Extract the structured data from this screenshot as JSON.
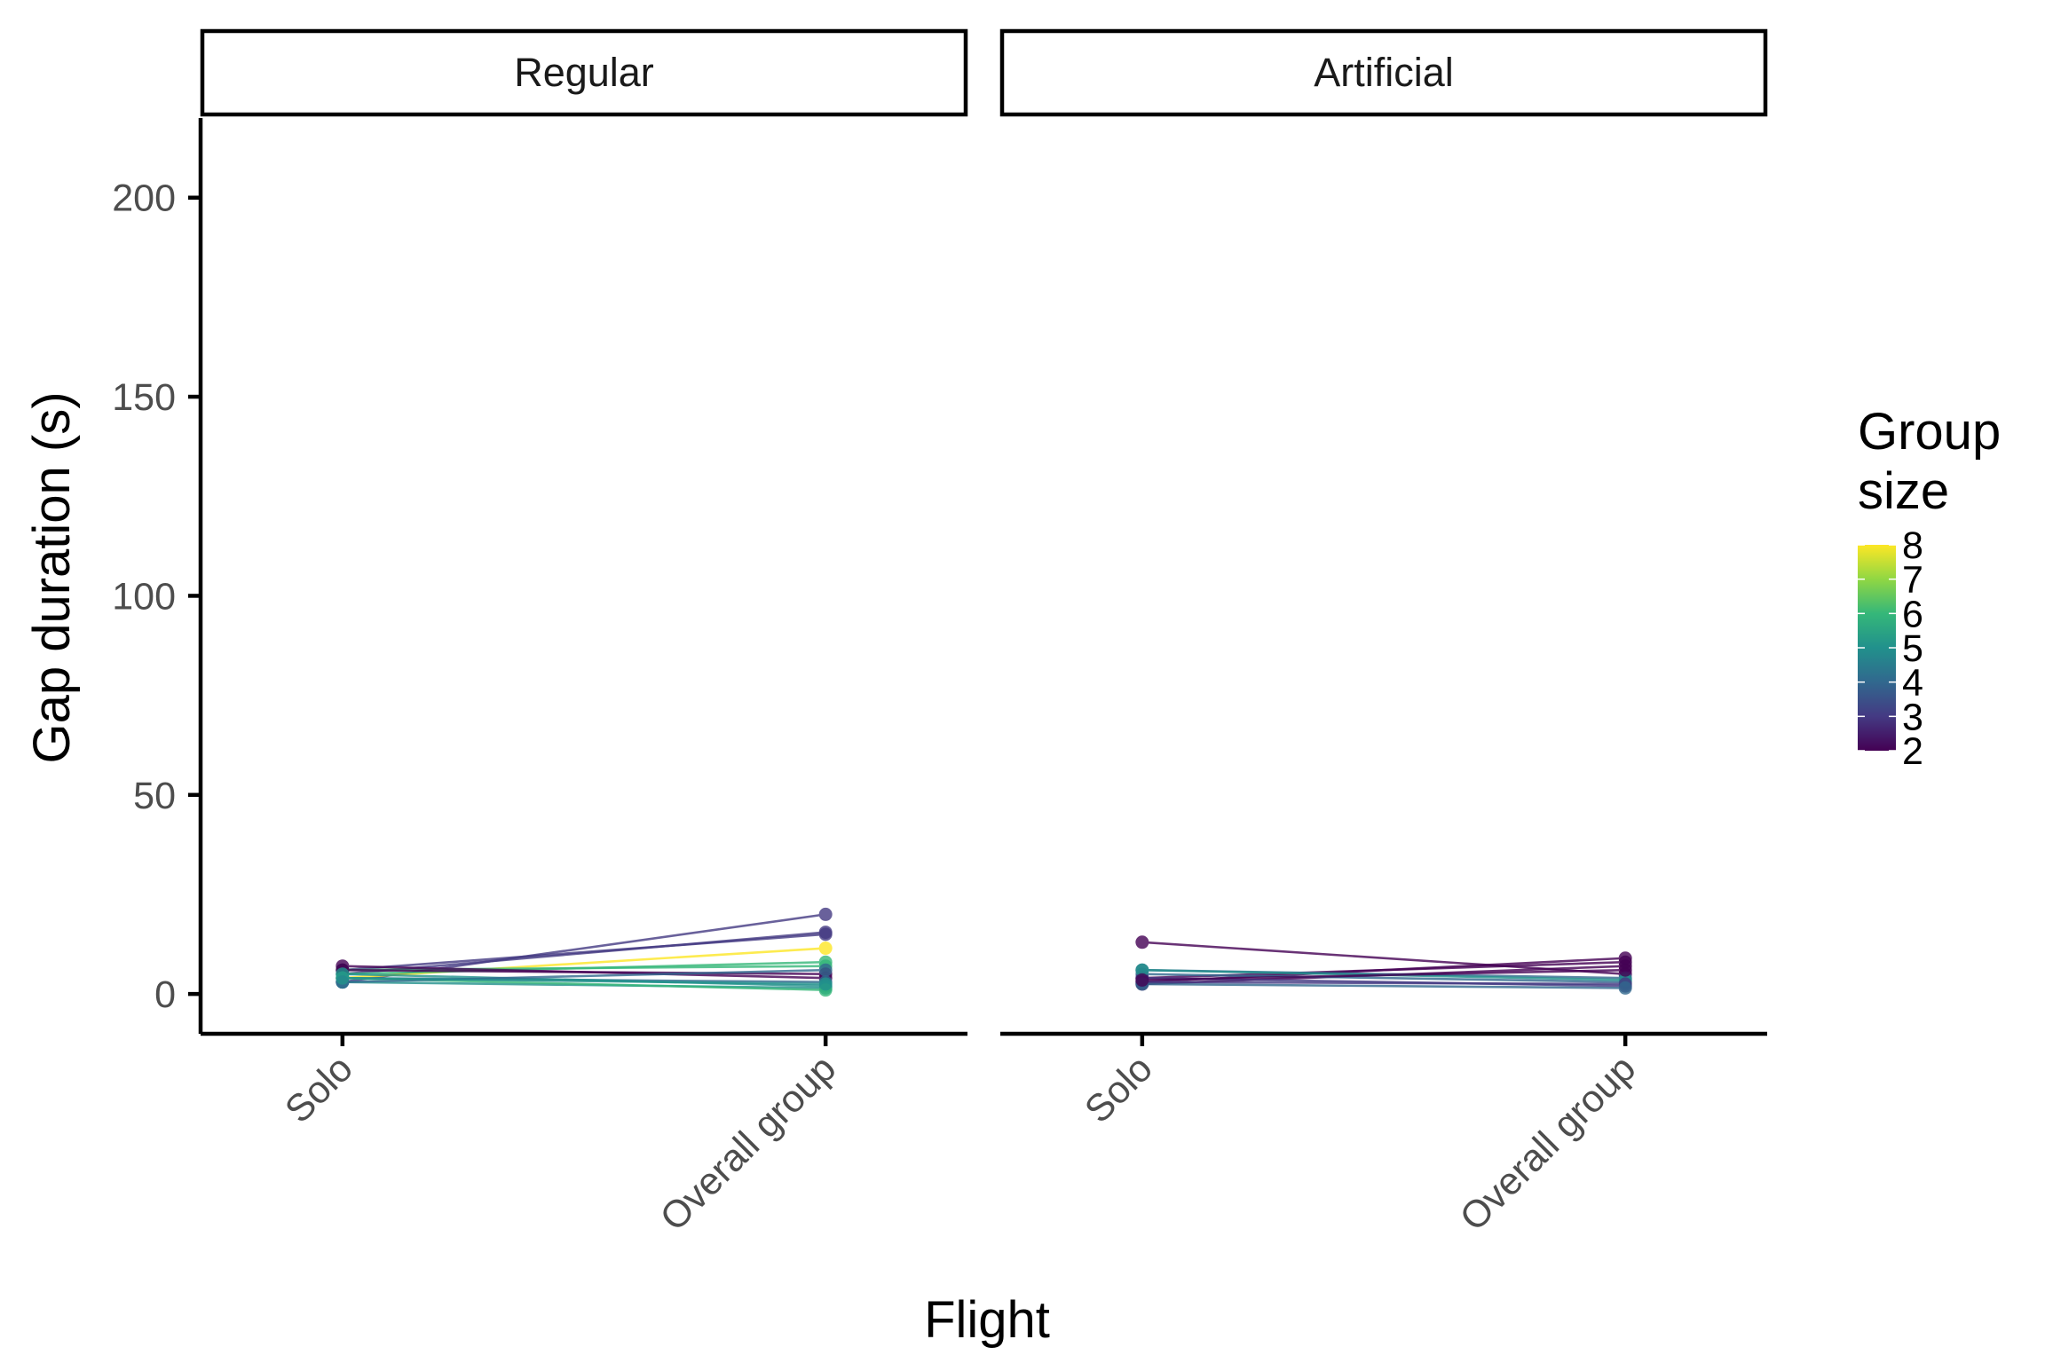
{
  "chart_data": {
    "type": "line",
    "xlabel": "Flight",
    "ylabel": "Gap duration (s)",
    "categories": [
      "Solo",
      "Overall group"
    ],
    "ylim": [
      -10,
      220
    ],
    "yticks": [
      0,
      50,
      100,
      150,
      200
    ],
    "grid": false,
    "legend": {
      "title_lines": [
        "Group",
        "size"
      ],
      "type": "colorbar",
      "placement": "right",
      "range": [
        2,
        8
      ],
      "ticks": [
        2,
        3,
        4,
        5,
        6,
        7,
        8
      ],
      "colors": [
        "#440154",
        "#443a83",
        "#31688e",
        "#21918c",
        "#35b779",
        "#90d743",
        "#fde725"
      ]
    },
    "facets": [
      {
        "label": "Regular",
        "series": [
          {
            "group_size": 3,
            "values": [
              3,
              20
            ]
          },
          {
            "group_size": 3,
            "values": [
              5,
              15.5
            ]
          },
          {
            "group_size": 3,
            "values": [
              6,
              15
            ]
          },
          {
            "group_size": 8,
            "values": [
              4,
              11.5
            ]
          },
          {
            "group_size": 6,
            "values": [
              5,
              8
            ]
          },
          {
            "group_size": 6,
            "values": [
              6,
              7
            ]
          },
          {
            "group_size": 2,
            "values": [
              7,
              4
            ]
          },
          {
            "group_size": 2,
            "values": [
              6,
              5
            ]
          },
          {
            "group_size": 4,
            "values": [
              4,
              3
            ]
          },
          {
            "group_size": 5,
            "values": [
              5,
              2
            ]
          },
          {
            "group_size": 5,
            "values": [
              3,
              1.5
            ]
          },
          {
            "group_size": 6,
            "values": [
              4,
              1
            ]
          },
          {
            "group_size": 4,
            "values": [
              3,
              6
            ]
          },
          {
            "group_size": 5,
            "values": [
              4,
              2.5
            ]
          }
        ]
      },
      {
        "label": "Artificial",
        "series": [
          {
            "group_size": 2,
            "values": [
              13,
              5
            ]
          },
          {
            "group_size": 2,
            "values": [
              3,
              9
            ]
          },
          {
            "group_size": 2,
            "values": [
              4,
              8
            ]
          },
          {
            "group_size": 2,
            "values": [
              2.5,
              7
            ]
          },
          {
            "group_size": 4,
            "values": [
              6,
              4
            ]
          },
          {
            "group_size": 4,
            "values": [
              5,
              3
            ]
          },
          {
            "group_size": 3,
            "values": [
              4,
              2
            ]
          },
          {
            "group_size": 5,
            "values": [
              6,
              3.5
            ]
          },
          {
            "group_size": 3,
            "values": [
              3,
              2.5
            ]
          },
          {
            "group_size": 4,
            "values": [
              2.5,
              1.5
            ]
          },
          {
            "group_size": 2,
            "values": [
              3.5,
              6
            ]
          }
        ]
      }
    ]
  }
}
